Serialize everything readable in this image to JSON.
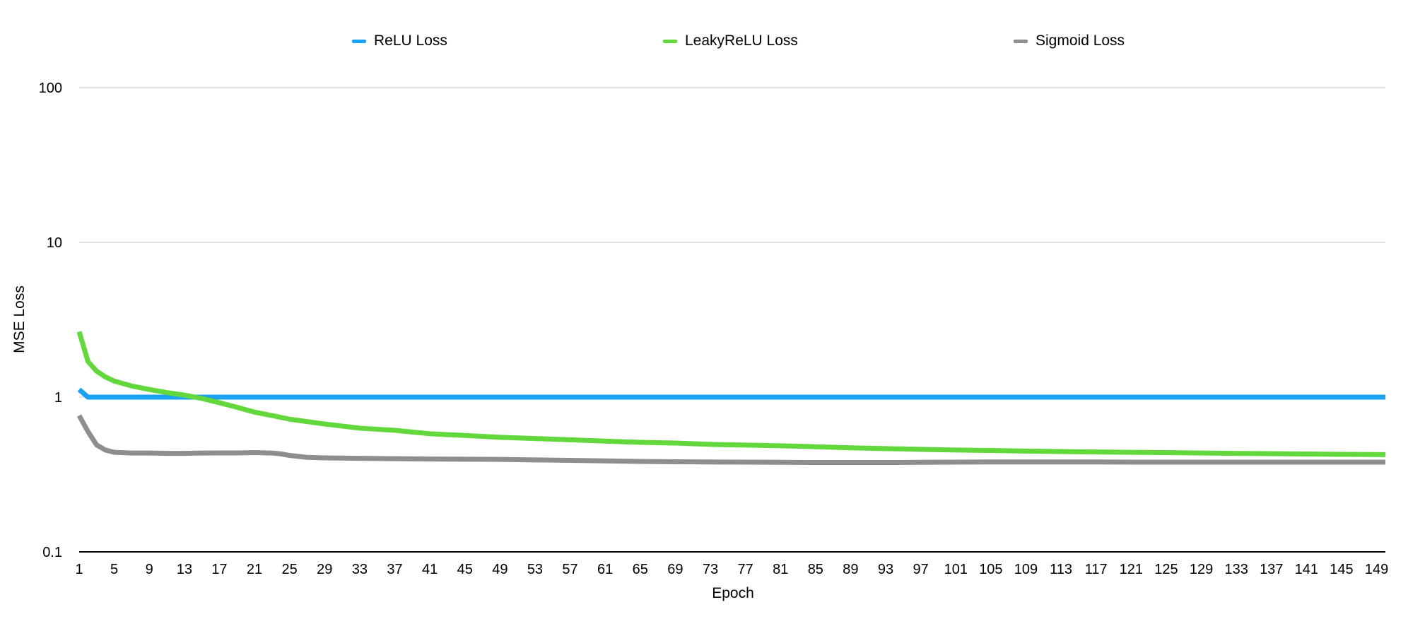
{
  "chart_data": {
    "type": "line",
    "title": "",
    "xlabel": "Epoch",
    "ylabel": "MSE Loss",
    "yscale": "log",
    "ylim": [
      0.1,
      100
    ],
    "xlim": [
      1,
      150
    ],
    "y_ticks": [
      "0.1",
      "1",
      "10",
      "100"
    ],
    "x_ticks": [
      "1",
      "5",
      "9",
      "13",
      "17",
      "21",
      "25",
      "29",
      "33",
      "37",
      "41",
      "45",
      "49",
      "53",
      "57",
      "61",
      "65",
      "69",
      "73",
      "77",
      "81",
      "85",
      "89",
      "93",
      "97",
      "101",
      "105",
      "109",
      "113",
      "117",
      "121",
      "125",
      "129",
      "133",
      "137",
      "141",
      "145",
      "149"
    ],
    "grid": "horizontal",
    "legend_position": "top",
    "series": [
      {
        "name": "ReLU Loss",
        "color": "#1aa1ef",
        "points": [
          [
            1,
            1.12
          ],
          [
            2,
            1.0
          ],
          [
            150,
            1.0
          ]
        ]
      },
      {
        "name": "LeakyReLU Loss",
        "color": "#62d83c",
        "points": [
          [
            1,
            2.65
          ],
          [
            2,
            1.7
          ],
          [
            3,
            1.47
          ],
          [
            4,
            1.35
          ],
          [
            5,
            1.27
          ],
          [
            7,
            1.18
          ],
          [
            9,
            1.12
          ],
          [
            11,
            1.07
          ],
          [
            13,
            1.03
          ],
          [
            15,
            0.98
          ],
          [
            17,
            0.92
          ],
          [
            19,
            0.86
          ],
          [
            21,
            0.8
          ],
          [
            23,
            0.76
          ],
          [
            25,
            0.72
          ],
          [
            29,
            0.67
          ],
          [
            33,
            0.63
          ],
          [
            37,
            0.61
          ],
          [
            41,
            0.58
          ],
          [
            45,
            0.565
          ],
          [
            49,
            0.55
          ],
          [
            53,
            0.54
          ],
          [
            57,
            0.53
          ],
          [
            61,
            0.52
          ],
          [
            65,
            0.51
          ],
          [
            69,
            0.505
          ],
          [
            73,
            0.495
          ],
          [
            77,
            0.49
          ],
          [
            81,
            0.485
          ],
          [
            85,
            0.478
          ],
          [
            89,
            0.47
          ],
          [
            93,
            0.465
          ],
          [
            97,
            0.46
          ],
          [
            101,
            0.455
          ],
          [
            105,
            0.452
          ],
          [
            109,
            0.448
          ],
          [
            113,
            0.445
          ],
          [
            117,
            0.442
          ],
          [
            121,
            0.44
          ],
          [
            125,
            0.438
          ],
          [
            129,
            0.435
          ],
          [
            133,
            0.433
          ],
          [
            137,
            0.431
          ],
          [
            141,
            0.429
          ],
          [
            145,
            0.427
          ],
          [
            150,
            0.425
          ]
        ]
      },
      {
        "name": "Sigmoid Loss",
        "color": "#8e8e8e",
        "points": [
          [
            1,
            0.76
          ],
          [
            2,
            0.6
          ],
          [
            3,
            0.49
          ],
          [
            4,
            0.455
          ],
          [
            5,
            0.44
          ],
          [
            7,
            0.435
          ],
          [
            9,
            0.435
          ],
          [
            11,
            0.433
          ],
          [
            13,
            0.433
          ],
          [
            15,
            0.435
          ],
          [
            17,
            0.436
          ],
          [
            19,
            0.436
          ],
          [
            21,
            0.438
          ],
          [
            23,
            0.435
          ],
          [
            24,
            0.43
          ],
          [
            25,
            0.42
          ],
          [
            27,
            0.408
          ],
          [
            29,
            0.405
          ],
          [
            33,
            0.402
          ],
          [
            37,
            0.4
          ],
          [
            41,
            0.398
          ],
          [
            45,
            0.397
          ],
          [
            49,
            0.396
          ],
          [
            53,
            0.393
          ],
          [
            57,
            0.39
          ],
          [
            61,
            0.387
          ],
          [
            65,
            0.384
          ],
          [
            69,
            0.382
          ],
          [
            73,
            0.381
          ],
          [
            77,
            0.38
          ],
          [
            81,
            0.379
          ],
          [
            85,
            0.378
          ],
          [
            89,
            0.378
          ],
          [
            93,
            0.378
          ],
          [
            97,
            0.379
          ],
          [
            101,
            0.38
          ],
          [
            105,
            0.381
          ],
          [
            109,
            0.381
          ],
          [
            113,
            0.381
          ],
          [
            117,
            0.381
          ],
          [
            121,
            0.38
          ],
          [
            125,
            0.38
          ],
          [
            129,
            0.38
          ],
          [
            133,
            0.38
          ],
          [
            137,
            0.38
          ],
          [
            141,
            0.38
          ],
          [
            145,
            0.38
          ],
          [
            150,
            0.38
          ]
        ]
      }
    ]
  }
}
